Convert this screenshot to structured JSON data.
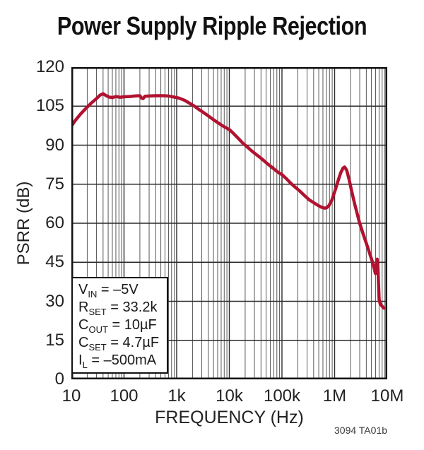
{
  "title": "Power Supply Ripple Rejection",
  "note": "3094 TA01b",
  "chart_data": {
    "type": "line",
    "title": "Power Supply Ripple Rejection",
    "xlabel": "FREQUENCY (Hz)",
    "ylabel": "PSRR (dB)",
    "x_scale": "log",
    "xlim": [
      10,
      10000000
    ],
    "ylim": [
      0,
      120
    ],
    "y_tick_step": 15,
    "x_ticklabels": [
      "10",
      "100",
      "1k",
      "10k",
      "100k",
      "1M",
      "10M"
    ],
    "y_ticklabels": [
      "0",
      "15",
      "30",
      "45",
      "60",
      "75",
      "90",
      "105",
      "120"
    ],
    "grid": "vertical log major+minor, horizontal every 15 dB",
    "legend": "none",
    "colors": {
      "curve": "#B11230",
      "grid_minor": "#585858",
      "grid_major": "#2a2a2a",
      "frame": "#111111"
    },
    "series": [
      {
        "name": "PSRR",
        "color": "#B11230",
        "points": [
          [
            10,
            97.3
          ],
          [
            12,
            99.6
          ],
          [
            15,
            102
          ],
          [
            19,
            104.2
          ],
          [
            24,
            106.2
          ],
          [
            30,
            107.9
          ],
          [
            35,
            109.2
          ],
          [
            40,
            109.8
          ],
          [
            45,
            109.1
          ],
          [
            52,
            108.5
          ],
          [
            60,
            108.3
          ],
          [
            70,
            108.7
          ],
          [
            85,
            108.4
          ],
          [
            100,
            108.6
          ],
          [
            130,
            108.7
          ],
          [
            160,
            108.9
          ],
          [
            200,
            109
          ],
          [
            215,
            108.1
          ],
          [
            230,
            107.9
          ],
          [
            250,
            108.8
          ],
          [
            300,
            108.9
          ],
          [
            400,
            109
          ],
          [
            550,
            109
          ],
          [
            700,
            108.9
          ],
          [
            900,
            108.5
          ],
          [
            1100,
            108.1
          ],
          [
            1400,
            107.3
          ],
          [
            1800,
            106
          ],
          [
            2200,
            104.9
          ],
          [
            2700,
            103.6
          ],
          [
            3300,
            102.4
          ],
          [
            4000,
            101.2
          ],
          [
            5000,
            99.8
          ],
          [
            6000,
            98.7
          ],
          [
            7500,
            97.4
          ],
          [
            9000,
            96.5
          ],
          [
            10000,
            96
          ],
          [
            12000,
            94.5
          ],
          [
            15000,
            92.5
          ],
          [
            18000,
            90.8
          ],
          [
            22000,
            89.3
          ],
          [
            27000,
            87.7
          ],
          [
            33000,
            86.3
          ],
          [
            40000,
            85
          ],
          [
            50000,
            83.3
          ],
          [
            60000,
            82
          ],
          [
            75000,
            80.4
          ],
          [
            90000,
            79.2
          ],
          [
            100000,
            78.7
          ],
          [
            120000,
            77.2
          ],
          [
            150000,
            75.2
          ],
          [
            180000,
            73.8
          ],
          [
            220000,
            72.3
          ],
          [
            270000,
            70.6
          ],
          [
            330000,
            69
          ],
          [
            400000,
            67.9
          ],
          [
            480000,
            66.9
          ],
          [
            560000,
            66.2
          ],
          [
            640000,
            65.8
          ],
          [
            700000,
            65.9
          ],
          [
            780000,
            66.8
          ],
          [
            880000,
            68.8
          ],
          [
            1000000,
            72
          ],
          [
            1150000,
            76
          ],
          [
            1300000,
            79.3
          ],
          [
            1450000,
            81.2
          ],
          [
            1550000,
            81.6
          ],
          [
            1700000,
            80.3
          ],
          [
            1900000,
            76.5
          ],
          [
            2100000,
            72.5
          ],
          [
            2400000,
            67.5
          ],
          [
            2700000,
            63.5
          ],
          [
            3000000,
            60
          ],
          [
            3500000,
            55.8
          ],
          [
            4000000,
            52.3
          ],
          [
            4600000,
            48.6
          ],
          [
            5200000,
            45.3
          ],
          [
            5700000,
            42.3
          ],
          [
            5950000,
            40.7
          ],
          [
            6150000,
            43.6
          ],
          [
            6400000,
            46.2
          ],
          [
            6600000,
            45.1
          ],
          [
            6800000,
            37.5
          ],
          [
            7000000,
            30.8
          ],
          [
            7300000,
            29.2
          ],
          [
            7900000,
            28.2
          ],
          [
            8600000,
            27.4
          ]
        ]
      }
    ],
    "annotations": {
      "conditions": [
        {
          "sym": "V",
          "sub": "IN",
          "rest": " = –5V"
        },
        {
          "sym": "R",
          "sub": "SET",
          "rest": " = 33.2k"
        },
        {
          "sym": "C",
          "sub": "OUT",
          "rest": " = 10µF"
        },
        {
          "sym": "C",
          "sub": "SET",
          "rest": " = 4.7µF"
        },
        {
          "sym": "I",
          "sub": "L",
          "rest": " = –500mA"
        }
      ]
    }
  }
}
